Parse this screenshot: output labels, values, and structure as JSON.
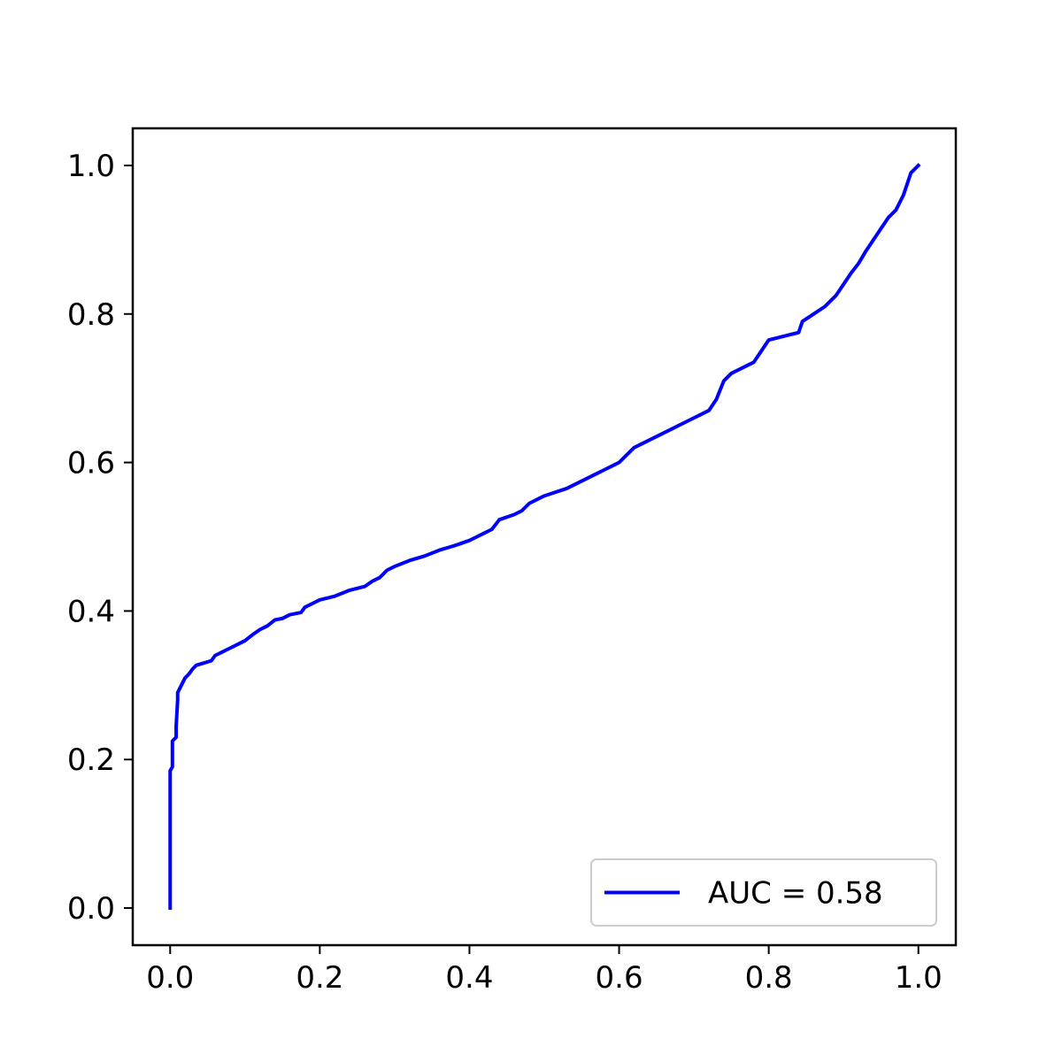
{
  "chart_data": {
    "type": "line",
    "title": "",
    "xlabel": "",
    "ylabel": "",
    "xlim": [
      -0.05,
      1.05
    ],
    "ylim": [
      -0.05,
      1.05
    ],
    "x_ticks": [
      "0.0",
      "0.2",
      "0.4",
      "0.6",
      "0.8",
      "1.0"
    ],
    "y_ticks": [
      "0.0",
      "0.2",
      "0.4",
      "0.6",
      "0.8",
      "1.0"
    ],
    "grid": false,
    "legend_position": "lower right",
    "series": [
      {
        "name": "AUC = 0.58",
        "color": "#0000ff",
        "x": [
          0.0,
          0.0,
          0.0,
          0.003,
          0.003,
          0.008,
          0.008,
          0.01,
          0.01,
          0.015,
          0.02,
          0.025,
          0.03,
          0.035,
          0.045,
          0.055,
          0.06,
          0.06,
          0.07,
          0.08,
          0.09,
          0.1,
          0.11,
          0.12,
          0.13,
          0.14,
          0.15,
          0.16,
          0.175,
          0.18,
          0.19,
          0.2,
          0.22,
          0.24,
          0.26,
          0.27,
          0.28,
          0.29,
          0.3,
          0.32,
          0.34,
          0.36,
          0.38,
          0.4,
          0.41,
          0.42,
          0.43,
          0.44,
          0.46,
          0.47,
          0.48,
          0.5,
          0.53,
          0.55,
          0.57,
          0.58,
          0.6,
          0.61,
          0.62,
          0.64,
          0.66,
          0.68,
          0.7,
          0.71,
          0.72,
          0.73,
          0.74,
          0.75,
          0.76,
          0.78,
          0.79,
          0.8,
          0.82,
          0.84,
          0.845,
          0.86,
          0.875,
          0.88,
          0.89,
          0.9,
          0.91,
          0.92,
          0.93,
          0.94,
          0.95,
          0.96,
          0.97,
          0.98,
          0.985,
          0.99,
          1.0
        ],
        "y": [
          0.0,
          0.1,
          0.185,
          0.19,
          0.225,
          0.23,
          0.245,
          0.28,
          0.29,
          0.3,
          0.31,
          0.315,
          0.322,
          0.327,
          0.33,
          0.333,
          0.34,
          0.34,
          0.345,
          0.35,
          0.355,
          0.36,
          0.368,
          0.375,
          0.38,
          0.388,
          0.39,
          0.395,
          0.398,
          0.405,
          0.41,
          0.415,
          0.42,
          0.428,
          0.433,
          0.44,
          0.445,
          0.455,
          0.46,
          0.468,
          0.474,
          0.482,
          0.488,
          0.495,
          0.5,
          0.505,
          0.51,
          0.523,
          0.53,
          0.535,
          0.545,
          0.555,
          0.565,
          0.575,
          0.585,
          0.59,
          0.6,
          0.61,
          0.62,
          0.63,
          0.64,
          0.65,
          0.66,
          0.665,
          0.67,
          0.685,
          0.71,
          0.72,
          0.725,
          0.735,
          0.75,
          0.765,
          0.77,
          0.775,
          0.79,
          0.8,
          0.81,
          0.815,
          0.825,
          0.84,
          0.855,
          0.868,
          0.885,
          0.9,
          0.915,
          0.93,
          0.94,
          0.96,
          0.975,
          0.99,
          1.0
        ]
      }
    ]
  }
}
